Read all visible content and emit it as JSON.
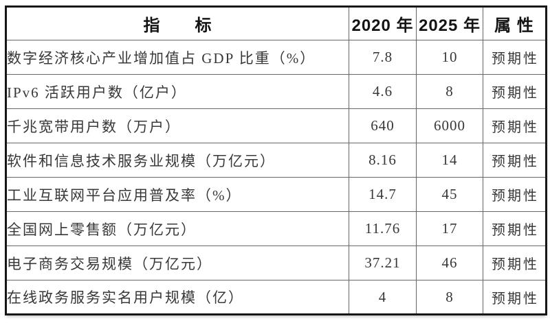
{
  "table": {
    "headers": [
      "指　　标",
      "2020 年",
      "2025 年",
      "属 性"
    ],
    "rows": [
      {
        "indicator": "数字经济核心产业增加值占 GDP 比重（%）",
        "value_2020": "7.8",
        "value_2025": "10",
        "attribute": "预期性"
      },
      {
        "indicator": "IPv6 活跃用户数（亿户）",
        "value_2020": "4.6",
        "value_2025": "8",
        "attribute": "预期性"
      },
      {
        "indicator": "千兆宽带用户数（万户）",
        "value_2020": "640",
        "value_2025": "6000",
        "attribute": "预期性"
      },
      {
        "indicator": "软件和信息技术服务业规模（万亿元）",
        "value_2020": "8.16",
        "value_2025": "14",
        "attribute": "预期性"
      },
      {
        "indicator": "工业互联网平台应用普及率（%）",
        "value_2020": "14.7",
        "value_2025": "45",
        "attribute": "预期性"
      },
      {
        "indicator": "全国网上零售额（万亿元）",
        "value_2020": "11.76",
        "value_2025": "17",
        "attribute": "预期性"
      },
      {
        "indicator": "电子商务交易规模（万亿元）",
        "value_2020": "37.21",
        "value_2025": "46",
        "attribute": "预期性"
      },
      {
        "indicator": "在线政务服务实名用户规模（亿）",
        "value_2020": "4",
        "value_2025": "8",
        "attribute": "预期性"
      }
    ],
    "colors": {
      "background": "#ffffff",
      "outer_border": "#161616",
      "grid_line": "#666666",
      "header_text": "#141414",
      "body_text": "#383838"
    }
  }
}
